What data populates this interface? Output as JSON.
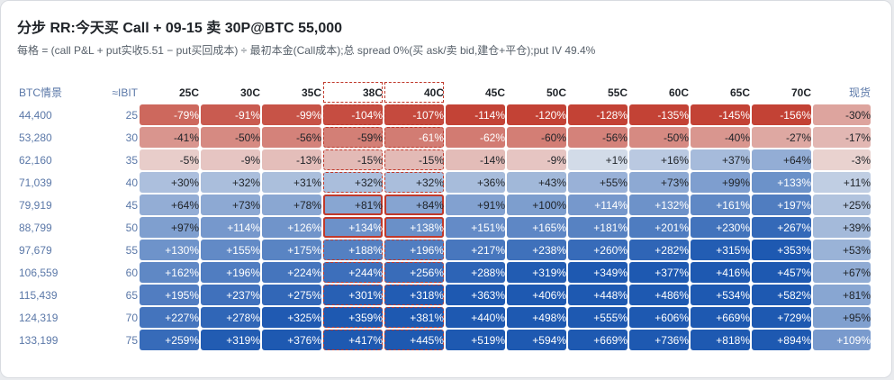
{
  "header": {
    "title": "分步 RR:今天买 Call + 09-15 卖 30P@BTC 55,000",
    "subtitle": "每格 = (call P&L + put实收5.51 − put买回成本) ÷ 最初本金(Call成本);总 spread 0%(买 ask/卖 bid,建仓+平仓);put IV 49.4%"
  },
  "table": {
    "col_btc": "BTC情景",
    "col_ibit": "≈IBIT",
    "col_spot": "现货",
    "strikes": [
      "25C",
      "30C",
      "35C",
      "38C",
      "40C",
      "45C",
      "50C",
      "55C",
      "60C",
      "65C",
      "70C"
    ],
    "selected_strikes": [
      "38C",
      "40C"
    ],
    "rows": [
      {
        "btc": "44,400",
        "ibit": "25",
        "cells": [
          "-79%",
          "-91%",
          "-99%",
          "-104%",
          "-107%",
          "-114%",
          "-120%",
          "-128%",
          "-135%",
          "-145%",
          "-156%"
        ],
        "spot": "-30%"
      },
      {
        "btc": "53,280",
        "ibit": "30",
        "cells": [
          "-41%",
          "-50%",
          "-56%",
          "-59%",
          "-61%",
          "-62%",
          "-60%",
          "-56%",
          "-50%",
          "-40%",
          "-27%"
        ],
        "spot": "-17%"
      },
      {
        "btc": "62,160",
        "ibit": "35",
        "cells": [
          "-5%",
          "-9%",
          "-13%",
          "-15%",
          "-15%",
          "-14%",
          "-9%",
          "+1%",
          "+16%",
          "+37%",
          "+64%"
        ],
        "spot": "-3%"
      },
      {
        "btc": "71,039",
        "ibit": "40",
        "cells": [
          "+30%",
          "+32%",
          "+31%",
          "+32%",
          "+32%",
          "+36%",
          "+43%",
          "+55%",
          "+73%",
          "+99%",
          "+133%"
        ],
        "spot": "+11%"
      },
      {
        "btc": "79,919",
        "ibit": "45",
        "cells": [
          "+64%",
          "+73%",
          "+78%",
          "+81%",
          "+84%",
          "+91%",
          "+100%",
          "+114%",
          "+132%",
          "+161%",
          "+197%"
        ],
        "spot": "+25%",
        "current": true
      },
      {
        "btc": "88,799",
        "ibit": "50",
        "cells": [
          "+97%",
          "+114%",
          "+126%",
          "+134%",
          "+138%",
          "+151%",
          "+165%",
          "+181%",
          "+201%",
          "+230%",
          "+267%"
        ],
        "spot": "+39%",
        "current": true
      },
      {
        "btc": "97,679",
        "ibit": "55",
        "cells": [
          "+130%",
          "+155%",
          "+175%",
          "+188%",
          "+196%",
          "+217%",
          "+238%",
          "+260%",
          "+282%",
          "+315%",
          "+353%"
        ],
        "spot": "+53%"
      },
      {
        "btc": "106,559",
        "ibit": "60",
        "cells": [
          "+162%",
          "+196%",
          "+224%",
          "+244%",
          "+256%",
          "+288%",
          "+319%",
          "+349%",
          "+377%",
          "+416%",
          "+457%"
        ],
        "spot": "+67%"
      },
      {
        "btc": "115,439",
        "ibit": "65",
        "cells": [
          "+195%",
          "+237%",
          "+275%",
          "+301%",
          "+318%",
          "+363%",
          "+406%",
          "+448%",
          "+486%",
          "+534%",
          "+582%"
        ],
        "spot": "+81%"
      },
      {
        "btc": "124,319",
        "ibit": "70",
        "cells": [
          "+227%",
          "+278%",
          "+325%",
          "+359%",
          "+381%",
          "+440%",
          "+498%",
          "+555%",
          "+606%",
          "+669%",
          "+729%"
        ],
        "spot": "+95%"
      },
      {
        "btc": "133,199",
        "ibit": "75",
        "cells": [
          "+259%",
          "+319%",
          "+376%",
          "+417%",
          "+445%",
          "+519%",
          "+594%",
          "+669%",
          "+736%",
          "+818%",
          "+894%"
        ],
        "spot": "+109%"
      }
    ]
  },
  "colors": {
    "negative": "#c0392b",
    "positive": "#1a56b0",
    "neutral": "#f2f2f2",
    "selected_outline": "#c0392b"
  }
}
